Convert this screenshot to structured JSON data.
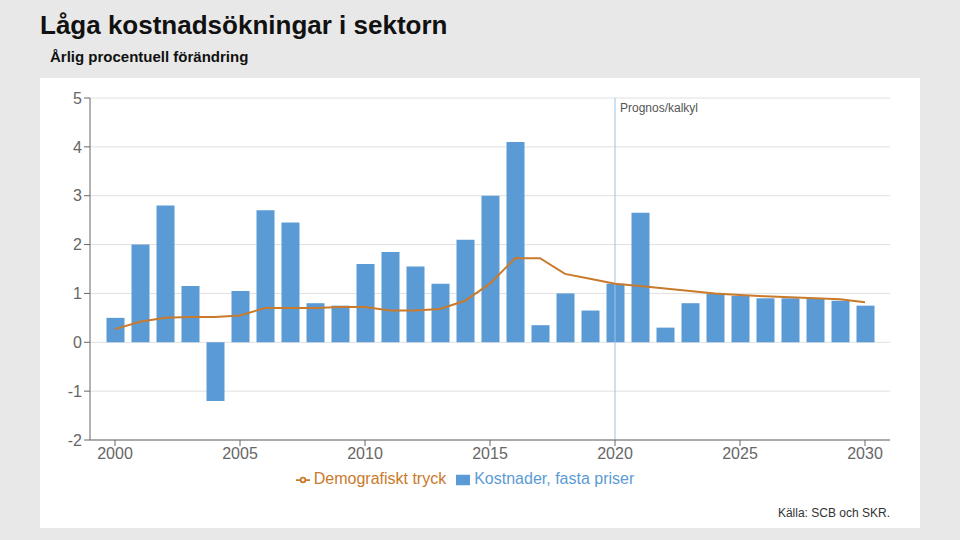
{
  "chart_data": {
    "type": "bar",
    "title": "Låga kostnadsökningar i sektorn",
    "subtitle": "Årlig procentuell förändring",
    "source": "Källa: SCB och SKR.",
    "annotations": [
      {
        "x": 2020,
        "text": "Prognos/kalkyl"
      }
    ],
    "x": [
      2000,
      2001,
      2002,
      2003,
      2004,
      2005,
      2006,
      2007,
      2008,
      2009,
      2010,
      2011,
      2012,
      2013,
      2014,
      2015,
      2016,
      2017,
      2018,
      2019,
      2020,
      2021,
      2022,
      2023,
      2024,
      2025,
      2026,
      2027,
      2028,
      2029,
      2030
    ],
    "series": [
      {
        "name": "Kostnader, fasta priser",
        "type": "bar",
        "color": "#5B9BD5",
        "values": [
          0.5,
          2.0,
          2.8,
          1.15,
          -1.2,
          1.05,
          2.7,
          2.45,
          0.8,
          0.75,
          1.6,
          1.85,
          1.55,
          1.2,
          2.1,
          3.0,
          4.1,
          0.35,
          1.0,
          0.65,
          1.2,
          2.65,
          0.3,
          0.8,
          1.0,
          0.95,
          0.9,
          0.9,
          0.9,
          0.85,
          0.75
        ]
      },
      {
        "name": "Demografiskt tryck",
        "type": "line",
        "color": "#C97A2A",
        "values": [
          0.27,
          0.42,
          0.5,
          0.52,
          0.52,
          0.55,
          0.7,
          0.7,
          0.7,
          0.72,
          0.72,
          0.65,
          0.65,
          0.68,
          0.85,
          1.2,
          1.72,
          1.72,
          1.4,
          1.3,
          1.2,
          1.15,
          1.1,
          1.05,
          1.0,
          0.97,
          0.94,
          0.92,
          0.9,
          0.88,
          0.82
        ]
      }
    ],
    "xlim": [
      1999.0,
      2031.0
    ],
    "xticks": [
      2000,
      2005,
      2010,
      2015,
      2020,
      2025,
      2030
    ],
    "ylim": [
      -2,
      5
    ],
    "yticks": [
      -2,
      -1,
      0,
      1,
      2,
      3,
      4,
      5
    ],
    "grid": true,
    "legend": "bottom"
  }
}
